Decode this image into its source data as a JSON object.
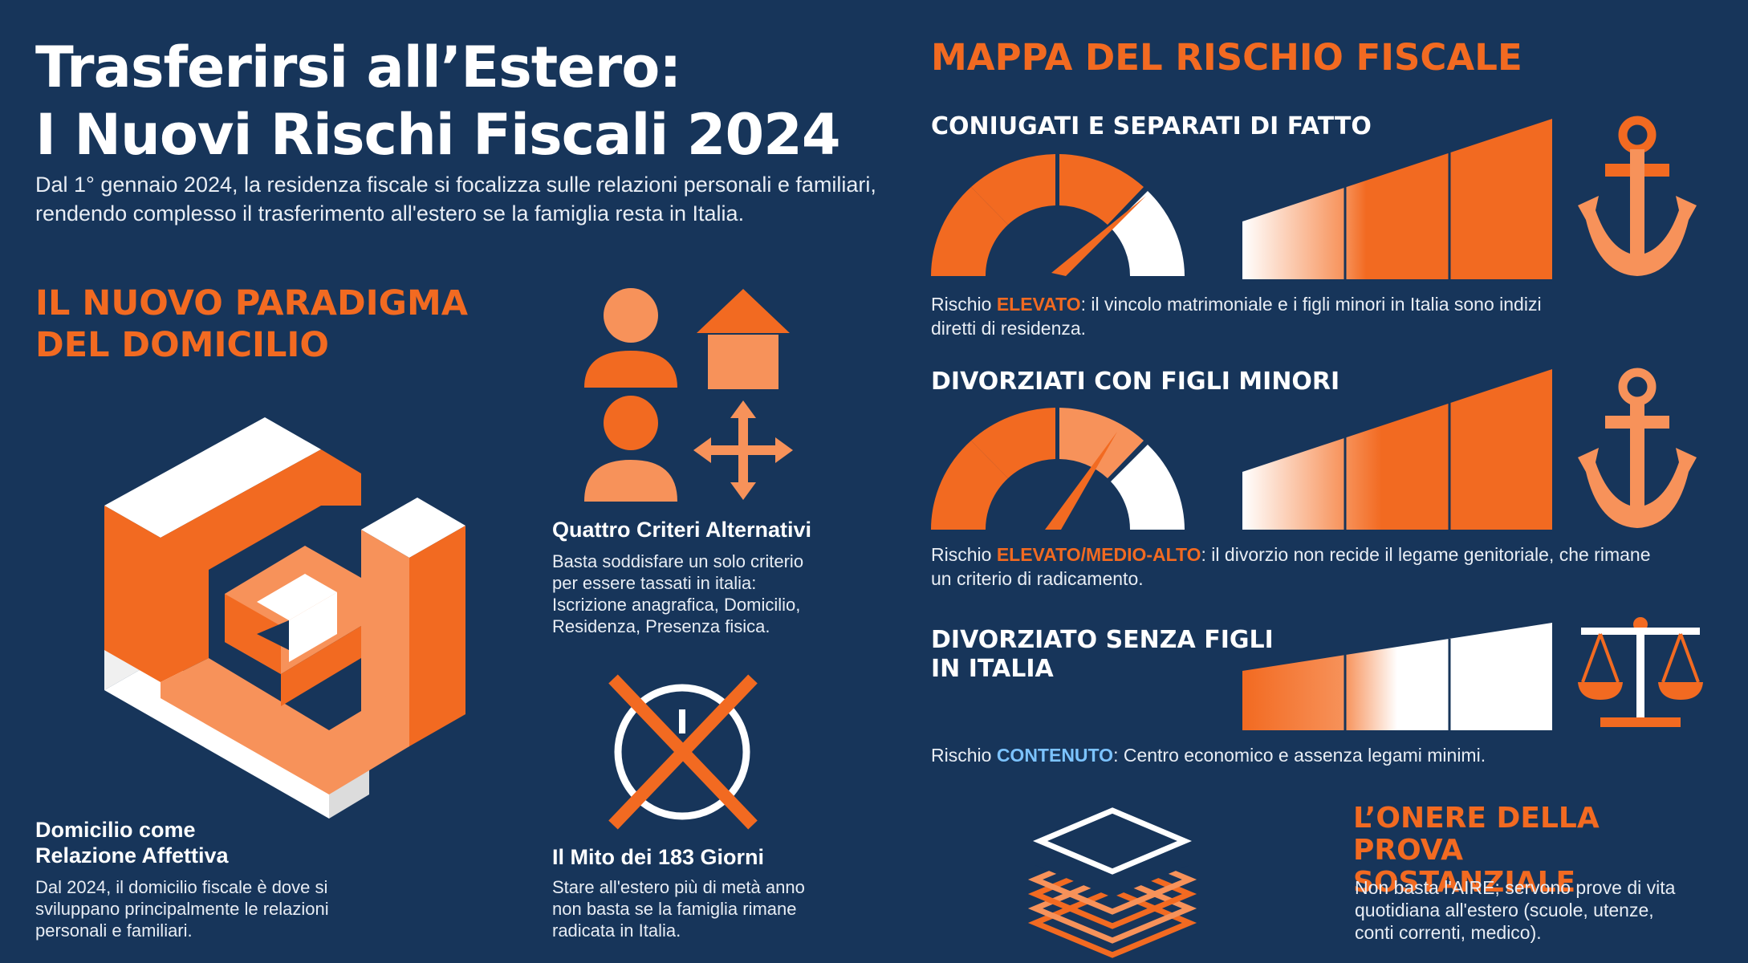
{
  "header": {
    "title_line1": "Trasferirsi all’Estero:",
    "title_line2": "I Nuovi Rischi Fiscali 2024",
    "subtitle": "Dal 1° gennaio 2024, la residenza fiscale si focalizza sulle relazioni personali e familiari, rendendo complesso il trasferimento all'estero se la famiglia resta in Italia."
  },
  "paradigma": {
    "heading_line1": "IL NUOVO PARADIGMA",
    "heading_line2": "DEL DOMICILIO"
  },
  "domicilio": {
    "title_line1": "Domicilio come",
    "title_line2": "Relazione Affettiva",
    "text_line1": "Dal 2024, il domicilio fiscale è dove si",
    "text_line2": "sviluppano principalmente le relazioni",
    "text_line3": "personali e familiari."
  },
  "criteri": {
    "title": "Quattro Criteri Alternativi",
    "text_line1": "Basta soddisfare un solo criterio",
    "text_line2": "per essere tassati in italia:",
    "text_line3": "Iscrizione anagrafica, Domicilio,",
    "text_line4": "Residenza, Presenza fisica."
  },
  "mito": {
    "title": "Il Mito dei 183 Giorni",
    "text_line1": "Stare all'estero più di metà anno",
    "text_line2": "non basta se la famiglia rimane",
    "text_line3": "radicata in Italia."
  },
  "mappa": {
    "heading": "MAPPA DEL RISCHIO FISCALE",
    "cases": [
      {
        "title_line1": "CONIUGATI E SEPARATI DI FATTO",
        "title_line2": "",
        "risk_prefix": "Rischio ",
        "risk_level": "ELEVATO",
        "risk_text_line1": ": il vincolo matrimoniale e i figli minori in Italia sono indizi",
        "risk_text_line2": "diretti di residenza.",
        "icon": "anchor-icon"
      },
      {
        "title_line1": "DIVORZIATI CON FIGLI MINORI",
        "title_line2": "",
        "risk_prefix": "Rischio ",
        "risk_level": "ELEVATO/MEDIO-ALTO",
        "risk_text_line1": ": il divorzio non recide il legame genitoriale, che rimane",
        "risk_text_line2": "un criterio di radicamento.",
        "icon": "anchor-icon"
      },
      {
        "title_line1": "DIVORZIATO SENZA FIGLI",
        "title_line2": "IN ITALIA",
        "risk_prefix": "Rischio ",
        "risk_level": "CONTENUTO",
        "risk_text_line1": ": Centro economico e assenza legami minimi.",
        "risk_text_line2": "",
        "icon": "scale-icon"
      }
    ]
  },
  "onere": {
    "heading_line1": "L’ONERE DELLA PROVA",
    "heading_line2": "SOSTANZIALE",
    "text_line1": "Non basta l'AIRE; servono prove di vita",
    "text_line2": "quotidiana all'estero (scuole, utenze,",
    "text_line3": "conti correnti, medico)."
  },
  "colors": {
    "background": "#17355a",
    "accent_orange": "#f26a21",
    "light_orange": "#f7925a",
    "accent_blue": "#7cc3ff"
  }
}
